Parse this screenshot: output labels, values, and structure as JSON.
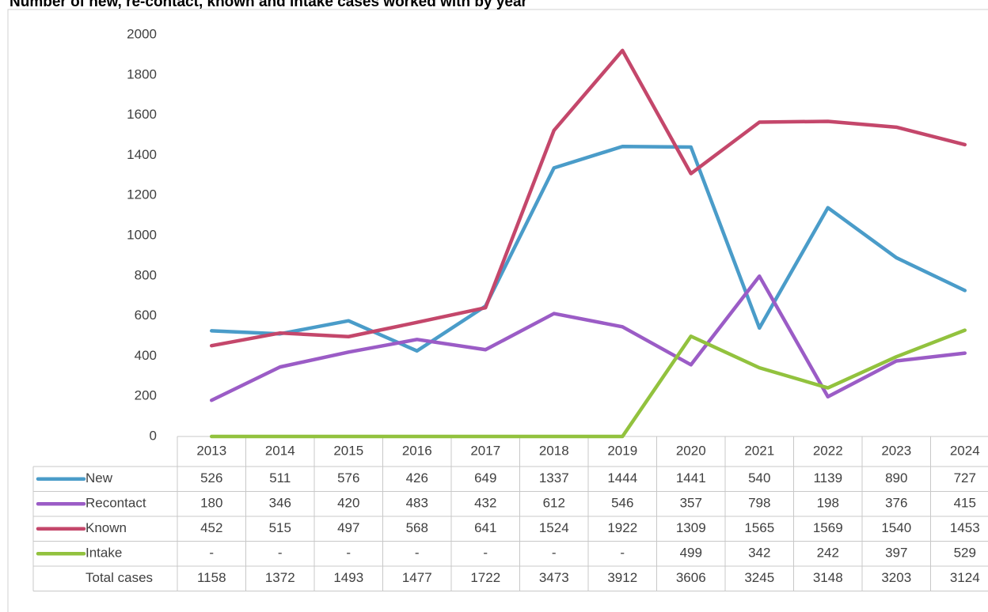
{
  "chart_data": {
    "type": "line",
    "title": "Number of new, re-contact, known and intake cases worked with by year",
    "categories": [
      "2013",
      "2014",
      "2015",
      "2016",
      "2017",
      "2018",
      "2019",
      "2020",
      "2021",
      "2022",
      "2023",
      "2024"
    ],
    "series": [
      {
        "name": "New",
        "color": "#4a9cc9",
        "values": [
          526,
          511,
          576,
          426,
          649,
          1337,
          1444,
          1441,
          540,
          1139,
          890,
          727
        ]
      },
      {
        "name": "Recontact",
        "color": "#9b5cc6",
        "values": [
          180,
          346,
          420,
          483,
          432,
          612,
          546,
          357,
          798,
          198,
          376,
          415
        ]
      },
      {
        "name": "Known",
        "color": "#c4476b",
        "values": [
          452,
          515,
          497,
          568,
          641,
          1524,
          1922,
          1309,
          1565,
          1569,
          1540,
          1453
        ]
      },
      {
        "name": "Intake",
        "color": "#92c23e",
        "values": [
          0,
          0,
          0,
          0,
          0,
          0,
          0,
          499,
          342,
          242,
          397,
          529
        ],
        "value_labels": [
          "-",
          "-",
          "-",
          "-",
          "-",
          "-",
          "-",
          "499",
          "342",
          "242",
          "397",
          "529"
        ]
      }
    ],
    "totals": {
      "name": "Total cases",
      "values": [
        1158,
        1372,
        1493,
        1477,
        1722,
        3473,
        3912,
        3606,
        3245,
        3148,
        3203,
        3124
      ]
    },
    "ylim": [
      0,
      2000
    ],
    "yticks": [
      0,
      200,
      400,
      600,
      800,
      1000,
      1200,
      1400,
      1600,
      1800,
      2000
    ],
    "grid": false
  }
}
